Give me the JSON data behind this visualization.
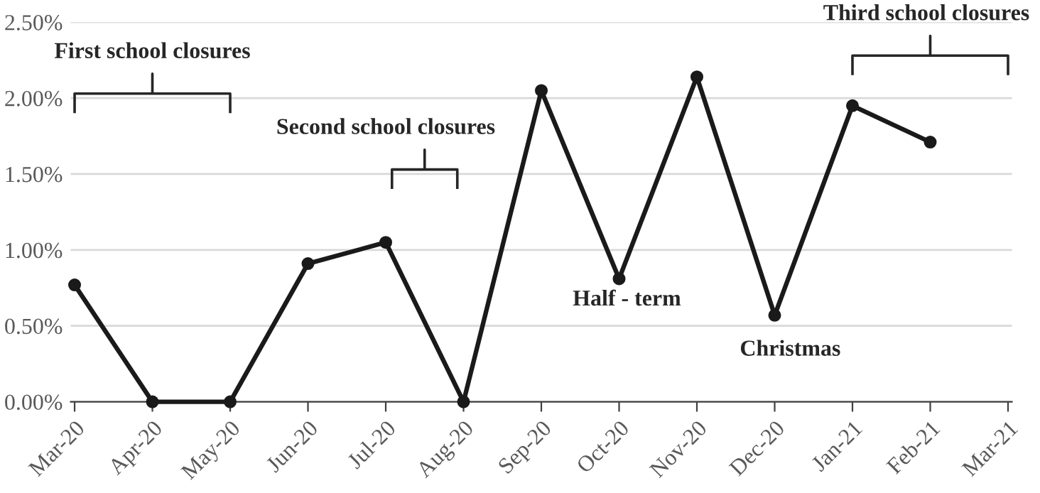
{
  "chart_data": {
    "type": "line",
    "categories": [
      "Mar-20",
      "Apr-20",
      "May-20",
      "Jun-20",
      "Jul-20",
      "Aug-20",
      "Sep-20",
      "Oct-20",
      "Nov-20",
      "Dec-20",
      "Jan-21",
      "Feb-21",
      "Mar-21"
    ],
    "series": [
      {
        "color": "#1a1a1a",
        "values": [
          0.77,
          0,
          0,
          0.91,
          1.05,
          0,
          2.05,
          0.81,
          2.14,
          0.57,
          1.95,
          1.71,
          null
        ]
      }
    ],
    "ylim": [
      0,
      2.5
    ],
    "yticks": [
      {
        "value": 0,
        "label": "0.00%"
      },
      {
        "value": 0.5,
        "label": "0.50%"
      },
      {
        "value": 1,
        "label": "1.00%"
      },
      {
        "value": 1.5,
        "label": "1.50%"
      },
      {
        "value": 2,
        "label": "2.00%"
      },
      {
        "value": 2.5,
        "label": "2.50%"
      }
    ],
    "grid": "y",
    "marker": "circle",
    "line_style": "solid",
    "annotations": [
      "First school closures",
      "Second school closures",
      "Third school closures",
      "Half - term",
      "Christmas"
    ]
  }
}
